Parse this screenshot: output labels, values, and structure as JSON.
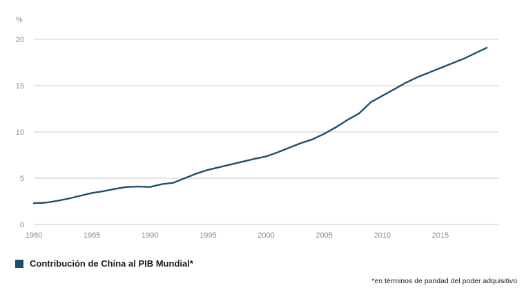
{
  "chart_data": {
    "type": "line",
    "ylabel": "%",
    "xlim": [
      1980,
      2020
    ],
    "ylim": [
      0,
      20
    ],
    "x_ticks": [
      1980,
      1985,
      1990,
      1995,
      2000,
      2005,
      2010,
      2015
    ],
    "y_ticks": [
      0,
      5,
      10,
      15,
      20
    ],
    "grid": "horizontal",
    "legend_position": "bottom-left",
    "series": [
      {
        "name": "Contribución de China al PIB Mundial*",
        "color": "#1f4e6b",
        "x": [
          1980,
          1981,
          1982,
          1983,
          1984,
          1985,
          1986,
          1987,
          1988,
          1989,
          1990,
          1991,
          1992,
          1993,
          1994,
          1995,
          1996,
          1997,
          1998,
          1999,
          2000,
          2001,
          2002,
          2003,
          2004,
          2005,
          2006,
          2007,
          2008,
          2009,
          2010,
          2011,
          2012,
          2013,
          2014,
          2015,
          2016,
          2017,
          2018,
          2019
        ],
        "y": [
          2.3,
          2.35,
          2.55,
          2.8,
          3.1,
          3.4,
          3.6,
          3.85,
          4.05,
          4.1,
          4.05,
          4.35,
          4.5,
          5.0,
          5.5,
          5.9,
          6.2,
          6.5,
          6.8,
          7.1,
          7.35,
          7.8,
          8.3,
          8.8,
          9.2,
          9.8,
          10.5,
          11.3,
          12.0,
          13.2,
          13.9,
          14.6,
          15.3,
          15.9,
          16.4,
          16.9,
          17.4,
          17.9,
          18.5,
          19.1
        ]
      }
    ]
  },
  "footnote": "*en términos de paridad del poder adquisitivo",
  "colors": {
    "line": "#1f4e6b",
    "grid": "#c9c9c9",
    "axis_text": "#8a8a8a"
  }
}
